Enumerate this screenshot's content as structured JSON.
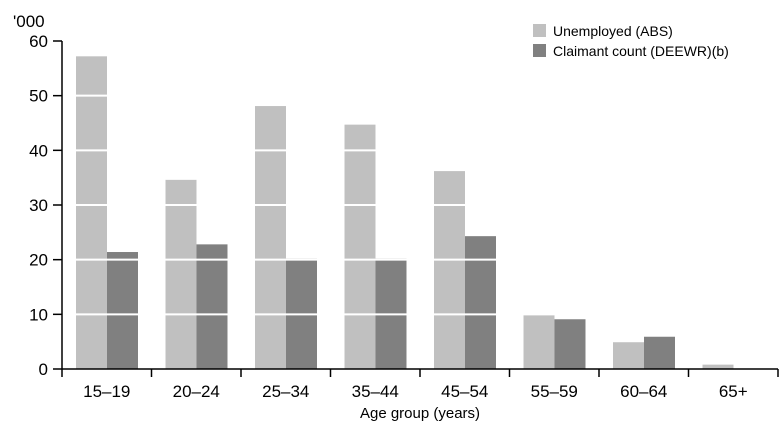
{
  "chart_data": {
    "type": "bar",
    "unit_label": "'000",
    "xlabel": "Age group (years)",
    "ylabel": "",
    "ylim": [
      0,
      60
    ],
    "yticks": [
      0,
      10,
      20,
      30,
      40,
      50,
      60
    ],
    "categories": [
      "15–19",
      "20–24",
      "25–34",
      "35–44",
      "45–54",
      "55–59",
      "60–64",
      "65+"
    ],
    "series": [
      {
        "name": "Unemployed (ABS)",
        "color": "#c0c0c0",
        "values": [
          57.2,
          34.6,
          48.1,
          44.7,
          36.2,
          9.9,
          4.9,
          0.8
        ]
      },
      {
        "name": "Claimant count (DEEWR)(b)",
        "color": "#808080",
        "values": [
          21.4,
          22.8,
          20.2,
          20.2,
          24.3,
          9.1,
          5.9,
          0
        ]
      }
    ],
    "grid": true,
    "grid_color": "#ffffff",
    "legend_position": "top-right"
  }
}
